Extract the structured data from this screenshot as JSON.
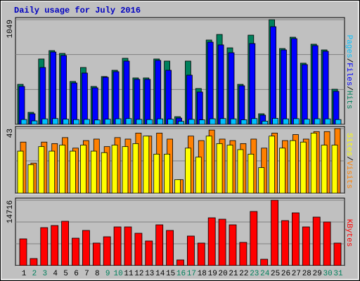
{
  "chart_data": [
    {
      "type": "bar",
      "title": "Daily usage for July 2016",
      "ylim": [
        0,
        1049
      ],
      "yticks": [
        1049
      ],
      "series": [
        {
          "name": "Hits",
          "color": "#00805c",
          "values": [
            401,
            120,
            655,
            739,
            711,
            430,
            570,
            380,
            479,
            542,
            662,
            465,
            465,
            655,
            634,
            77,
            634,
            359,
            845,
            901,
            767,
            401,
            894,
            106,
            1049,
            760,
            873,
            613,
            803,
            746,
            352
          ]
        },
        {
          "name": "Files",
          "color": "#0000ff",
          "values": [
            380,
            106,
            570,
            725,
            690,
            415,
            514,
            366,
            472,
            528,
            634,
            451,
            451,
            641,
            542,
            63,
            493,
            324,
            824,
            796,
            718,
            387,
            810,
            92,
            979,
            746,
            859,
            599,
            789,
            732,
            331
          ]
        },
        {
          "name": "Pages",
          "color": "#00c0ff",
          "values": [
            49,
            35,
            55,
            58,
            52,
            48,
            50,
            44,
            52,
            56,
            58,
            50,
            48,
            55,
            52,
            30,
            50,
            45,
            56,
            58,
            55,
            46,
            58,
            32,
            60,
            55,
            57,
            52,
            56,
            55,
            48
          ]
        }
      ]
    },
    {
      "type": "bar",
      "ylim": [
        0,
        43
      ],
      "yticks": [
        43
      ],
      "series": [
        {
          "name": "Visits",
          "color": "#ff8000",
          "values": [
            34,
            20,
            34,
            33,
            37,
            30,
            35,
            36,
            31,
            37,
            36,
            40,
            38,
            40,
            36,
            9,
            38,
            35,
            42,
            36,
            35,
            33,
            36,
            30,
            40,
            35,
            39,
            36,
            41,
            41,
            43
          ]
        },
        {
          "name": "Sites",
          "color": "#ffff00",
          "values": [
            28,
            19,
            31,
            28,
            32,
            28,
            32,
            28,
            27,
            32,
            31,
            33,
            38,
            26,
            26,
            9,
            30,
            24,
            38,
            33,
            32,
            29,
            26,
            17,
            38,
            30,
            35,
            34,
            40,
            32,
            32
          ]
        }
      ]
    },
    {
      "type": "bar",
      "ylim": [
        0,
        14716
      ],
      "yticks": [
        14716
      ],
      "series": [
        {
          "name": "KBytes",
          "color": "#ff0000",
          "values": [
            6013,
            1582,
            8545,
            9019,
            9969,
            6171,
            7912,
            5064,
            6488,
            8703,
            8703,
            7279,
            5538,
            9178,
            7912,
            1266,
            6646,
            5064,
            10760,
            10444,
            9178,
            5222,
            12184,
            1424,
            14716,
            10127,
            11868,
            8703,
            10918,
            9811,
            5064
          ]
        }
      ],
      "categories": [
        "1",
        "2",
        "3",
        "4",
        "5",
        "6",
        "7",
        "8",
        "9",
        "10",
        "11",
        "12",
        "13",
        "14",
        "15",
        "16",
        "17",
        "18",
        "19",
        "20",
        "21",
        "22",
        "23",
        "24",
        "25",
        "26",
        "27",
        "28",
        "29",
        "30",
        "31"
      ],
      "weekend_color": "#00805c",
      "weekend": [
        1,
        2,
        8,
        9,
        15,
        16,
        22,
        23,
        29,
        30
      ]
    }
  ]
}
